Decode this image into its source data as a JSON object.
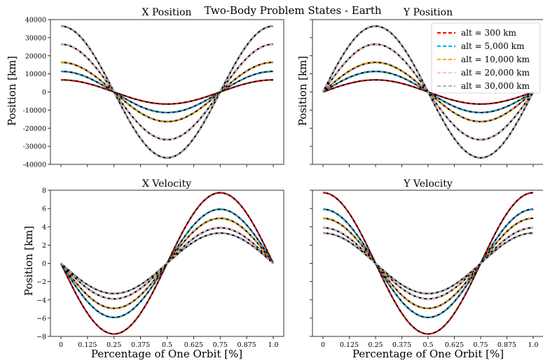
{
  "figure": {
    "suptitle": "Two-Body Problem States - Earth"
  },
  "colors": {
    "black_line": "#000000",
    "series": [
      "#ff0000",
      "#00b0f0",
      "#ffa500",
      "#ffc0cb",
      "#b4b4b4"
    ]
  },
  "legend": {
    "placement": "top-right",
    "panel": "Y Position"
  },
  "chart_data": [
    {
      "type": "line",
      "title": "X Position",
      "xlabel": "",
      "ylabel": "Position [km]",
      "ylim": [
        -40000,
        40000
      ],
      "yticks": [
        "40000",
        "30000",
        "20000",
        "10000",
        "0",
        "-10000",
        "-20000",
        "-30000",
        "-40000"
      ],
      "yticks_values": [
        40000,
        30000,
        20000,
        10000,
        0,
        -10000,
        -20000,
        -30000,
        -40000
      ],
      "xlim": [
        0,
        1
      ],
      "x_ticklabels_shown": false,
      "function": "cos",
      "series": [
        {
          "name": "alt = 300 km",
          "amplitude": 6678
        },
        {
          "name": "alt = 5,000 km",
          "amplitude": 11378
        },
        {
          "name": "alt = 10,000 km",
          "amplitude": 16378
        },
        {
          "name": "alt = 20,000 km",
          "amplitude": 26378
        },
        {
          "name": "alt = 30,000 km",
          "amplitude": 36378
        }
      ]
    },
    {
      "type": "line",
      "title": "Y Position",
      "xlabel": "",
      "ylabel": "Position [km]",
      "ylim": [
        -40000,
        40000
      ],
      "yticks": [
        "40000",
        "30000",
        "20000",
        "10000",
        "0",
        "-10000",
        "-20000",
        "-30000",
        "-40000"
      ],
      "yticks_values": [
        40000,
        30000,
        20000,
        10000,
        0,
        -10000,
        -20000,
        -30000,
        -40000
      ],
      "xlim": [
        0,
        1
      ],
      "x_ticklabels_shown": false,
      "y_ticklabels_shown": false,
      "function": "sin",
      "series": [
        {
          "name": "alt = 300 km",
          "amplitude": 6678
        },
        {
          "name": "alt = 5,000 km",
          "amplitude": 11378
        },
        {
          "name": "alt = 10,000 km",
          "amplitude": 16378
        },
        {
          "name": "alt = 20,000 km",
          "amplitude": 26378
        },
        {
          "name": "alt = 30,000 km",
          "amplitude": 36378
        }
      ]
    },
    {
      "type": "line",
      "title": "X Velocity",
      "xlabel": "Percentage of One Orbit [%]",
      "ylabel": "Position [km]",
      "ylim": [
        -8,
        8
      ],
      "yticks": [
        "8",
        "6",
        "4",
        "2",
        "0",
        "−2",
        "−4",
        "−6",
        "−8"
      ],
      "yticks_values": [
        8,
        6,
        4,
        2,
        0,
        -2,
        -4,
        -6,
        -8
      ],
      "xlim": [
        0,
        1
      ],
      "xticks": [
        "0",
        "0.125",
        "0.25",
        "0.375",
        "0.5",
        "0.625",
        "0.75",
        "0.875",
        "1.0"
      ],
      "xticks_values": [
        0,
        0.125,
        0.25,
        0.375,
        0.5,
        0.625,
        0.75,
        0.875,
        1.0
      ],
      "function": "-sin",
      "series": [
        {
          "name": "alt = 300 km",
          "amplitude": 7.73
        },
        {
          "name": "alt = 5,000 km",
          "amplitude": 5.92
        },
        {
          "name": "alt = 10,000 km",
          "amplitude": 4.93
        },
        {
          "name": "alt = 20,000 km",
          "amplitude": 3.89
        },
        {
          "name": "alt = 30,000 km",
          "amplitude": 3.31
        }
      ]
    },
    {
      "type": "line",
      "title": "Y Velocity",
      "xlabel": "Percentage of One Orbit [%]",
      "ylabel": "",
      "ylim": [
        -8,
        8
      ],
      "yticks": [
        "8",
        "6",
        "4",
        "2",
        "0",
        "−2",
        "−4",
        "−6",
        "−8"
      ],
      "yticks_values": [
        8,
        6,
        4,
        2,
        0,
        -2,
        -4,
        -6,
        -8
      ],
      "xlim": [
        0,
        1
      ],
      "xticks": [
        "0",
        "0.125",
        "0.25",
        "0.375",
        "0.5",
        "0.625",
        "0.75",
        "0.875",
        "1.0"
      ],
      "xticks_values": [
        0,
        0.125,
        0.25,
        0.375,
        0.5,
        0.625,
        0.75,
        0.875,
        1.0
      ],
      "y_ticklabels_shown": false,
      "function": "cos",
      "series": [
        {
          "name": "alt = 300 km",
          "amplitude": 7.73
        },
        {
          "name": "alt = 5,000 km",
          "amplitude": 5.92
        },
        {
          "name": "alt = 10,000 km",
          "amplitude": 4.93
        },
        {
          "name": "alt = 20,000 km",
          "amplitude": 3.89
        },
        {
          "name": "alt = 30,000 km",
          "amplitude": 3.31
        }
      ]
    }
  ]
}
